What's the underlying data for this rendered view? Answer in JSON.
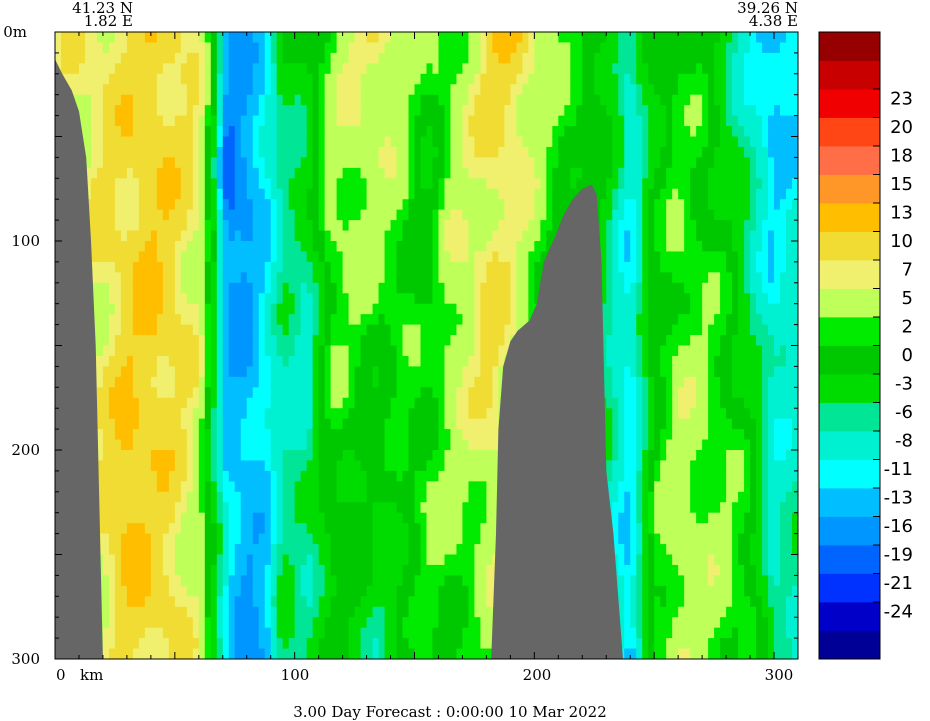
{
  "chart_data": {
    "type": "heatmap",
    "title": "3.00 Day Forecast :  0:00:00  10 Mar 2022",
    "start_point": {
      "lat": "41.23 N",
      "lon": "1.82 E"
    },
    "end_point": {
      "lat": "39.26 N",
      "lon": "4.38 E"
    },
    "x_axis": {
      "unit_label": "km",
      "range": [
        0,
        310
      ],
      "ticks": [
        0,
        100,
        200,
        300
      ]
    },
    "y_axis": {
      "range": [
        0,
        300
      ],
      "reversed": true,
      "ticks": [
        {
          "value": 0,
          "label": "0m"
        },
        {
          "value": 100,
          "label": "100"
        },
        {
          "value": 200,
          "label": "200"
        },
        {
          "value": 300,
          "label": "300"
        }
      ]
    },
    "colorbar": {
      "bins": [
        {
          "color": "#000096"
        },
        {
          "color": "#0000C8"
        },
        {
          "color": "#0032FF"
        },
        {
          "color": "#0064FF"
        },
        {
          "color": "#0096FF"
        },
        {
          "color": "#00BEFF"
        },
        {
          "color": "#00FFFF"
        },
        {
          "color": "#00F0D2"
        },
        {
          "color": "#00E696"
        },
        {
          "color": "#00DC00"
        },
        {
          "color": "#00C800"
        },
        {
          "color": "#00EB00"
        },
        {
          "color": "#BEFF5A"
        },
        {
          "color": "#F0F06E"
        },
        {
          "color": "#F0DC32"
        },
        {
          "color": "#FFBE00"
        },
        {
          "color": "#FF9628"
        },
        {
          "color": "#FF6E46"
        },
        {
          "color": "#FF4614"
        },
        {
          "color": "#F00000"
        },
        {
          "color": "#C80000"
        },
        {
          "color": "#960000"
        }
      ],
      "labels": [
        "-24",
        "-21",
        "-19",
        "-16",
        "-13",
        "-11",
        "-8",
        "-6",
        "-3",
        "0",
        "2",
        "5",
        "7",
        "10",
        "13",
        "15",
        "18",
        "20",
        "23"
      ]
    },
    "field_columns": [
      {
        "km": 2,
        "v": [
          5,
          4,
          4,
          3,
          3
        ]
      },
      {
        "km": 10,
        "v": [
          6,
          5,
          5,
          4,
          3
        ]
      },
      {
        "km": 20,
        "v": [
          7,
          7,
          6,
          7,
          5
        ]
      },
      {
        "km": 30,
        "v": [
          8,
          8,
          9,
          12,
          7
        ]
      },
      {
        "km": 40,
        "v": [
          9,
          10,
          10,
          9,
          8
        ]
      },
      {
        "km": 50,
        "v": [
          8,
          8,
          8,
          7,
          8
        ]
      },
      {
        "km": 60,
        "v": [
          5,
          6,
          5,
          4,
          4
        ]
      },
      {
        "km": 66,
        "v": [
          -2,
          -3,
          -4,
          -5,
          -3
        ]
      },
      {
        "km": 72,
        "v": [
          -16,
          -21,
          -15,
          -13,
          -11
        ]
      },
      {
        "km": 80,
        "v": [
          -15,
          -17,
          -16,
          -14,
          -19
        ]
      },
      {
        "km": 88,
        "v": [
          -13,
          -12,
          -12,
          -13,
          -16
        ]
      },
      {
        "km": 95,
        "v": [
          -4,
          -6,
          -8,
          -7,
          -5
        ]
      },
      {
        "km": 105,
        "v": [
          -2,
          -6,
          -9,
          -8,
          -6
        ]
      },
      {
        "km": 115,
        "v": [
          2,
          3,
          1,
          -1,
          -3
        ]
      },
      {
        "km": 125,
        "v": [
          5,
          4,
          1,
          -2,
          -4
        ]
      },
      {
        "km": 135,
        "v": [
          8,
          3,
          0,
          -4,
          -6
        ]
      },
      {
        "km": 145,
        "v": [
          3,
          2,
          1,
          -1,
          -3
        ]
      },
      {
        "km": 155,
        "v": [
          0,
          -3,
          -1,
          2,
          0
        ]
      },
      {
        "km": 165,
        "v": [
          2,
          3,
          4,
          2,
          0
        ]
      },
      {
        "km": 175,
        "v": [
          5,
          5,
          6,
          3,
          1
        ]
      },
      {
        "km": 183,
        "v": [
          9,
          7,
          8,
          5,
          2
        ]
      },
      {
        "km": 190,
        "v": [
          11,
          6,
          5,
          3,
          1
        ]
      },
      {
        "km": 200,
        "v": [
          6,
          3,
          2,
          1,
          0
        ]
      },
      {
        "km": 210,
        "v": [
          2,
          0,
          -2,
          -1,
          -1
        ]
      },
      {
        "km": 220,
        "v": [
          0,
          -1,
          -3,
          -2,
          -1
        ]
      },
      {
        "km": 230,
        "v": [
          -1,
          -4,
          -6,
          -8,
          -6
        ]
      },
      {
        "km": 240,
        "v": [
          -9,
          -11,
          -13,
          -12,
          -16
        ]
      },
      {
        "km": 250,
        "v": [
          -3,
          -2,
          -1,
          0,
          1
        ]
      },
      {
        "km": 260,
        "v": [
          0,
          1,
          3,
          4,
          4
        ]
      },
      {
        "km": 270,
        "v": [
          -1,
          0,
          2,
          3,
          3
        ]
      },
      {
        "km": 280,
        "v": [
          -6,
          -3,
          0,
          2,
          2
        ]
      },
      {
        "km": 290,
        "v": [
          -11,
          -8,
          -5,
          0,
          1
        ]
      },
      {
        "km": 300,
        "v": [
          -16,
          -13,
          -11,
          -9,
          -8
        ]
      },
      {
        "km": 308,
        "v": [
          -13,
          -11,
          -9,
          -8,
          -8
        ]
      }
    ],
    "field_depths": [
      0,
      75,
      150,
      225,
      300
    ],
    "bathymetry": {
      "color": "#666666",
      "left_wall": [
        {
          "km": 0,
          "depth": 13
        },
        {
          "km": 3,
          "depth": 20
        },
        {
          "km": 7,
          "depth": 28
        },
        {
          "km": 10,
          "depth": 38
        },
        {
          "km": 13,
          "depth": 60
        },
        {
          "km": 15,
          "depth": 100
        },
        {
          "km": 17,
          "depth": 150
        },
        {
          "km": 18,
          "depth": 200
        },
        {
          "km": 19,
          "depth": 250
        },
        {
          "km": 20,
          "depth": 300
        }
      ],
      "seamount": [
        {
          "km": 182,
          "depth": 300
        },
        {
          "km": 184,
          "depth": 240
        },
        {
          "km": 185,
          "depth": 190
        },
        {
          "km": 187,
          "depth": 160
        },
        {
          "km": 190,
          "depth": 148
        },
        {
          "km": 193,
          "depth": 143
        },
        {
          "km": 198,
          "depth": 138
        },
        {
          "km": 201,
          "depth": 130
        },
        {
          "km": 204,
          "depth": 110
        },
        {
          "km": 209,
          "depth": 97
        },
        {
          "km": 212,
          "depth": 88
        },
        {
          "km": 216,
          "depth": 80
        },
        {
          "km": 220,
          "depth": 75
        },
        {
          "km": 224,
          "depth": 73
        },
        {
          "km": 226,
          "depth": 78
        },
        {
          "km": 228,
          "depth": 110
        },
        {
          "km": 229,
          "depth": 160
        },
        {
          "km": 230,
          "depth": 210
        },
        {
          "km": 233,
          "depth": 240
        },
        {
          "km": 235,
          "depth": 270
        },
        {
          "km": 237,
          "depth": 300
        }
      ]
    }
  }
}
